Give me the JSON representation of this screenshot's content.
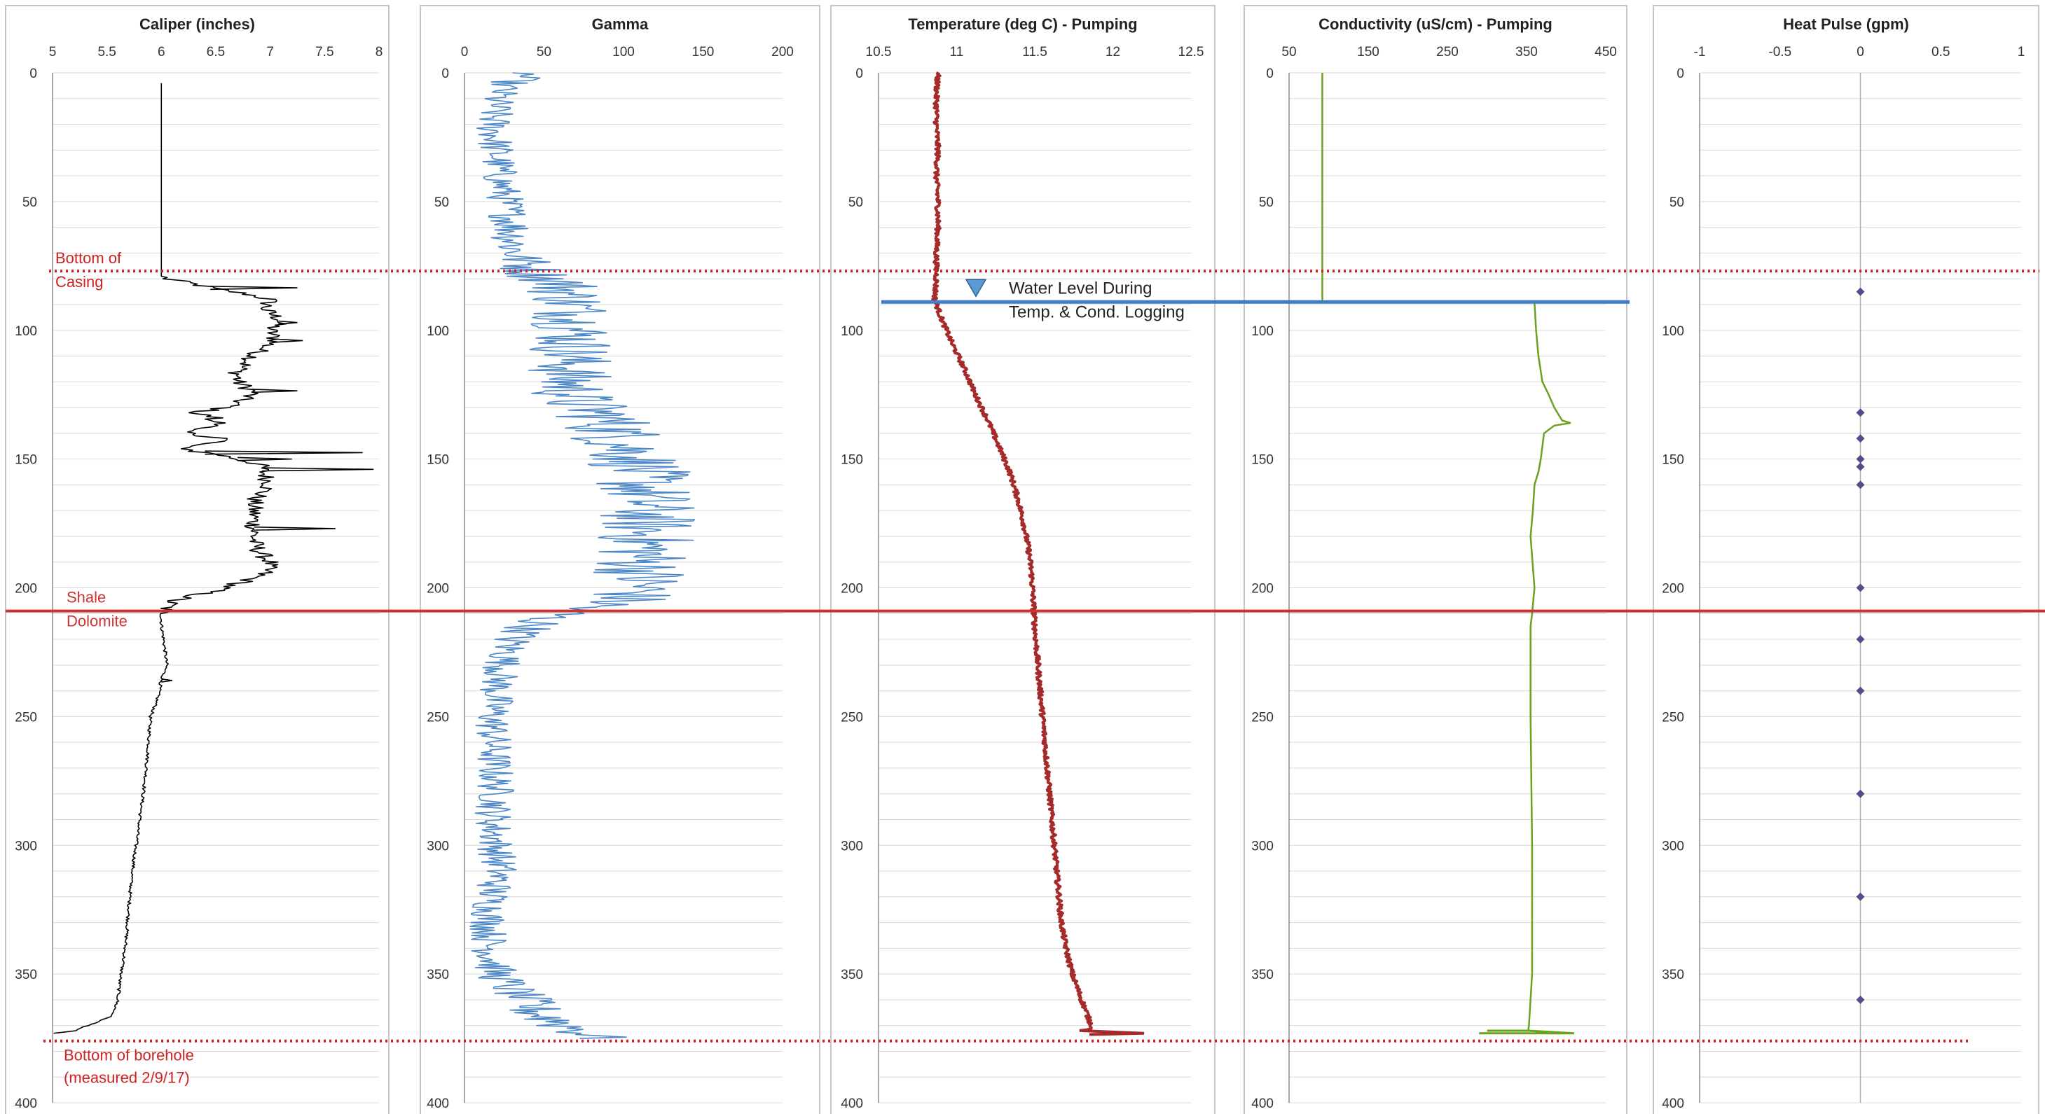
{
  "figure": {
    "y_axis": {
      "min": 0,
      "max": 400,
      "reversed": true,
      "ticks": [
        0,
        50,
        100,
        150,
        200,
        250,
        300,
        350,
        400
      ]
    }
  },
  "chart_data": [
    {
      "type": "line",
      "title": "Caliper (inches)",
      "xlim": [
        5,
        8
      ],
      "xticks": [
        "5",
        "5.5",
        "6",
        "6.5",
        "7",
        "7.5",
        "8"
      ],
      "ylim": [
        400,
        0
      ],
      "yticks": [
        "0",
        "50",
        "100",
        "150",
        "200",
        "250",
        "300",
        "350",
        "400"
      ],
      "color": "#000000",
      "series": [
        {
          "x": [
            6.0,
            6.0,
            6.0,
            6.0,
            6.0,
            6.0,
            6.05,
            6.3,
            6.5,
            6.8,
            7.0,
            6.95,
            7.1,
            7.0,
            7.05,
            6.9,
            6.8,
            6.75,
            6.7,
            6.7,
            6.85,
            6.7,
            6.6,
            6.3,
            6.4,
            6.5,
            6.4,
            6.6,
            6.55,
            6.3,
            6.2,
            6.25,
            6.4,
            6.6,
            6.55,
            6.4,
            6.2,
            6.25,
            6.3,
            6.5,
            6.7,
            6.9,
            6.95,
            7.0,
            6.9,
            6.85,
            6.85,
            6.85,
            6.85,
            6.9,
            7.0,
            6.95,
            6.8,
            6.5,
            6.1,
            6.05,
            6.0,
            6.0,
            6.02,
            6.05,
            6.0,
            5.98,
            5.95,
            5.9,
            5.88,
            5.85,
            5.8,
            5.75,
            5.72,
            5.7,
            5.68,
            5.65,
            5.62,
            5.6,
            5.55,
            5.45,
            5.2,
            5.0
          ],
          "y": [
            4,
            40,
            60,
            70,
            78,
            79,
            80,
            82,
            84,
            86,
            88,
            92,
            96,
            100,
            104,
            108,
            112,
            114,
            116,
            120,
            124,
            128,
            130,
            132,
            133,
            134,
            135,
            136,
            137,
            138,
            139,
            140,
            141,
            142,
            143,
            144,
            145,
            146,
            147,
            148,
            150,
            152,
            156,
            160,
            164,
            166,
            172,
            178,
            182,
            186,
            190,
            194,
            197,
            201,
            205,
            208,
            210,
            214,
            220,
            230,
            236,
            240,
            245,
            250,
            262,
            275,
            290,
            305,
            315,
            325,
            335,
            345,
            352,
            360,
            366,
            368,
            372,
            373
          ]
        }
      ],
      "spikes": [
        {
          "y": 83.5,
          "x": 7.25
        },
        {
          "y": 97,
          "x": 7.25
        },
        {
          "y": 104,
          "x": 7.3
        },
        {
          "y": 123.5,
          "x": 7.25
        },
        {
          "y": 147.5,
          "x": 7.85
        },
        {
          "y": 150,
          "x": 7.2
        },
        {
          "y": 154,
          "x": 7.95
        },
        {
          "y": 177,
          "x": 7.6
        },
        {
          "y": 236,
          "x": 6.1
        }
      ]
    },
    {
      "type": "line",
      "title": "Gamma",
      "xlim": [
        0,
        200
      ],
      "xticks": [
        "0",
        "50",
        "100",
        "150",
        "200"
      ],
      "ylim": [
        400,
        0
      ],
      "yticks": [
        "0",
        "50",
        "100",
        "150",
        "200",
        "250",
        "300",
        "350",
        "400"
      ],
      "color": "#4a86c8",
      "series": [
        {
          "y": [
            0,
            5,
            10,
            20,
            30,
            40,
            50,
            60,
            70,
            78,
            82,
            90,
            100,
            110,
            120,
            128,
            132,
            140,
            150,
            160,
            170,
            180,
            190,
            200,
            205,
            208,
            212,
            220,
            230,
            240,
            250,
            260,
            270,
            280,
            290,
            300,
            310,
            320,
            330,
            340,
            350,
            356,
            360,
            365,
            370,
            375
          ],
          "x": [
            40,
            25,
            20,
            18,
            20,
            22,
            26,
            30,
            32,
            45,
            62,
            68,
            70,
            67,
            65,
            70,
            85,
            95,
            108,
            112,
            115,
            114,
            112,
            112,
            100,
            75,
            50,
            30,
            24,
            20,
            18,
            18,
            19,
            20,
            18,
            20,
            22,
            17,
            15,
            16,
            20,
            30,
            38,
            45,
            65,
            85
          ],
          "noise": [
            15,
            12,
            12,
            12,
            12,
            12,
            12,
            14,
            16,
            22,
            26,
            26,
            28,
            28,
            28,
            28,
            30,
            32,
            32,
            32,
            32,
            32,
            32,
            30,
            28,
            26,
            18,
            14,
            12,
            12,
            12,
            12,
            12,
            12,
            12,
            12,
            12,
            12,
            12,
            12,
            14,
            16,
            18,
            20,
            24,
            20
          ]
        }
      ]
    },
    {
      "type": "line",
      "title": "Temperature (deg C) - Pumping",
      "xlim": [
        10.5,
        12.5
      ],
      "xticks": [
        "10.5",
        "11",
        "11.5",
        "12",
        "12.5"
      ],
      "ylim": [
        400,
        0
      ],
      "yticks": [
        "0",
        "50",
        "100",
        "150",
        "200",
        "250",
        "300",
        "350",
        "400"
      ],
      "color": "#a52a2a",
      "series": [
        {
          "y": [
            0,
            10,
            20,
            30,
            40,
            50,
            60,
            70,
            80,
            88,
            95,
            105,
            115,
            125,
            135,
            145,
            155,
            165,
            175,
            185,
            195,
            205,
            215,
            230,
            250,
            270,
            290,
            310,
            330,
            340,
            350,
            360,
            368,
            371,
            372
          ],
          "x": [
            10.88,
            10.87,
            10.87,
            10.88,
            10.87,
            10.88,
            10.88,
            10.87,
            10.87,
            10.86,
            10.9,
            10.97,
            11.05,
            11.12,
            11.2,
            11.27,
            11.34,
            11.39,
            11.43,
            11.46,
            11.48,
            11.49,
            11.5,
            11.52,
            11.55,
            11.58,
            11.61,
            11.64,
            11.67,
            11.7,
            11.74,
            11.8,
            11.85,
            11.87,
            11.8
          ]
        }
      ],
      "tail": [
        [
          11.8,
          372
        ],
        [
          12.2,
          373
        ],
        [
          11.85,
          373.5
        ]
      ]
    },
    {
      "type": "line",
      "title": "Conductivity (uS/cm) - Pumping",
      "xlim": [
        50,
        450
      ],
      "xticks": [
        "50",
        "150",
        "250",
        "350",
        "450"
      ],
      "ylim": [
        400,
        0
      ],
      "yticks": [
        "0",
        "50",
        "100",
        "150",
        "200",
        "250",
        "300",
        "350",
        "400"
      ],
      "color": "#6aa121",
      "series": [
        {
          "y": [
            0,
            89
          ],
          "x": [
            92,
            92
          ]
        },
        {
          "y": [
            89,
            100,
            110,
            120,
            125,
            130,
            135,
            136,
            137,
            140,
            145,
            150,
            155,
            160,
            170,
            180,
            200,
            210,
            215,
            250,
            300,
            350,
            370,
            372
          ],
          "x": [
            360,
            362,
            365,
            370,
            378,
            385,
            395,
            405,
            385,
            372,
            370,
            368,
            365,
            360,
            358,
            355,
            360,
            357,
            355,
            355,
            357,
            357,
            353,
            352
          ]
        }
      ],
      "tail": [
        [
          300,
          372
        ],
        [
          352,
          372
        ],
        [
          410,
          373
        ],
        [
          290,
          373
        ]
      ]
    },
    {
      "type": "scatter",
      "title": "Heat Pulse (gpm)",
      "xlim": [
        -1,
        1
      ],
      "xticks": [
        "-1",
        "-0.5",
        "0",
        "0.5",
        "1"
      ],
      "ylim": [
        400,
        0
      ],
      "yticks": [
        "0",
        "50",
        "100",
        "150",
        "200",
        "250",
        "300",
        "350",
        "400"
      ],
      "color": "#5b4a8b",
      "points": [
        {
          "x": 0,
          "y": 85
        },
        {
          "x": 0,
          "y": 132
        },
        {
          "x": 0,
          "y": 142
        },
        {
          "x": 0,
          "y": 150
        },
        {
          "x": 0,
          "y": 153
        },
        {
          "x": 0,
          "y": 160
        },
        {
          "x": 0,
          "y": 200
        },
        {
          "x": 0,
          "y": 220
        },
        {
          "x": 0,
          "y": 240
        },
        {
          "x": 0,
          "y": 280
        },
        {
          "x": 0,
          "y": 320
        },
        {
          "x": 0,
          "y": 360
        }
      ]
    }
  ],
  "annotations": {
    "bottom_casing": {
      "depth": 77,
      "text_line1": "Bottom of",
      "text_line2": "Casing",
      "color": "#cc2222",
      "style": "dotted"
    },
    "shale_dolomite": {
      "depth": 209,
      "text_top": "Shale",
      "text_bottom": "Dolomite",
      "color": "#cc3333"
    },
    "bottom_borehole": {
      "depth": 376,
      "text_line1": "Bottom of borehole",
      "text_line2": "(measured 2/9/17)",
      "color": "#cc2222",
      "style": "dotted"
    },
    "water_level": {
      "depth": 89,
      "text_line1": "Water Level During",
      "text_line2": "Temp. & Cond. Logging",
      "color": "#3f7dc8",
      "marker_color": "#5b9bd5"
    }
  }
}
